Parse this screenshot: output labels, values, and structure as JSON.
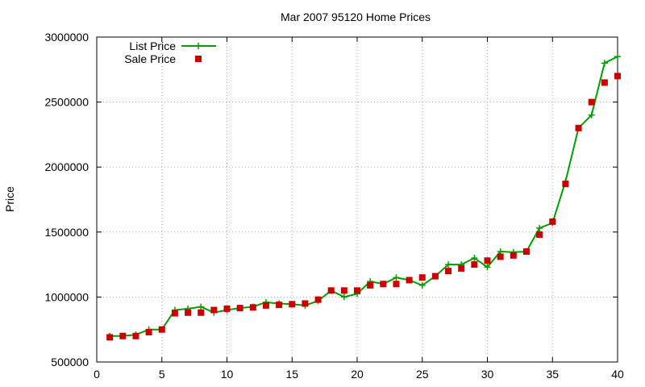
{
  "chart_data": {
    "type": "line",
    "title": "Mar 2007 95120 Home Prices",
    "xlabel": "",
    "ylabel": "Price",
    "xlim": [
      0,
      40
    ],
    "ylim": [
      500000,
      3000000
    ],
    "x_ticks": [
      0,
      5,
      10,
      15,
      20,
      25,
      30,
      35,
      40
    ],
    "y_ticks": [
      500000,
      1000000,
      1500000,
      2000000,
      2500000,
      3000000
    ],
    "grid": true,
    "legend_position": "top-left",
    "series": [
      {
        "name": "List Price",
        "style": "line-plus",
        "color": "#00a000",
        "x": [
          1,
          2,
          3,
          4,
          5,
          6,
          7,
          8,
          9,
          10,
          11,
          12,
          13,
          14,
          15,
          16,
          17,
          18,
          19,
          20,
          21,
          22,
          23,
          24,
          25,
          26,
          27,
          28,
          29,
          30,
          31,
          32,
          33,
          34,
          35,
          36,
          37,
          38,
          39,
          40
        ],
        "values": [
          700000,
          700000,
          710000,
          750000,
          750000,
          900000,
          910000,
          925000,
          880000,
          900000,
          915000,
          925000,
          960000,
          950000,
          945000,
          935000,
          970000,
          1050000,
          1000000,
          1025000,
          1120000,
          1100000,
          1150000,
          1130000,
          1090000,
          1160000,
          1250000,
          1250000,
          1300000,
          1230000,
          1350000,
          1345000,
          1350000,
          1530000,
          1570000,
          1890000,
          2300000,
          2400000,
          2800000,
          2850000
        ]
      },
      {
        "name": "Sale Price",
        "style": "square-points",
        "color": "#cc0000",
        "x": [
          1,
          2,
          3,
          4,
          5,
          6,
          7,
          8,
          9,
          10,
          11,
          12,
          13,
          14,
          15,
          16,
          17,
          18,
          19,
          20,
          21,
          22,
          23,
          24,
          25,
          26,
          27,
          28,
          29,
          30,
          31,
          32,
          33,
          34,
          35,
          36,
          37,
          38,
          39,
          40
        ],
        "values": [
          690000,
          700000,
          700000,
          730000,
          750000,
          875000,
          880000,
          880000,
          900000,
          910000,
          915000,
          920000,
          935000,
          940000,
          945000,
          950000,
          980000,
          1050000,
          1050000,
          1050000,
          1090000,
          1100000,
          1100000,
          1130000,
          1150000,
          1160000,
          1200000,
          1220000,
          1250000,
          1280000,
          1310000,
          1320000,
          1350000,
          1480000,
          1580000,
          1870000,
          2300000,
          2500000,
          2650000,
          2700000
        ]
      }
    ]
  }
}
